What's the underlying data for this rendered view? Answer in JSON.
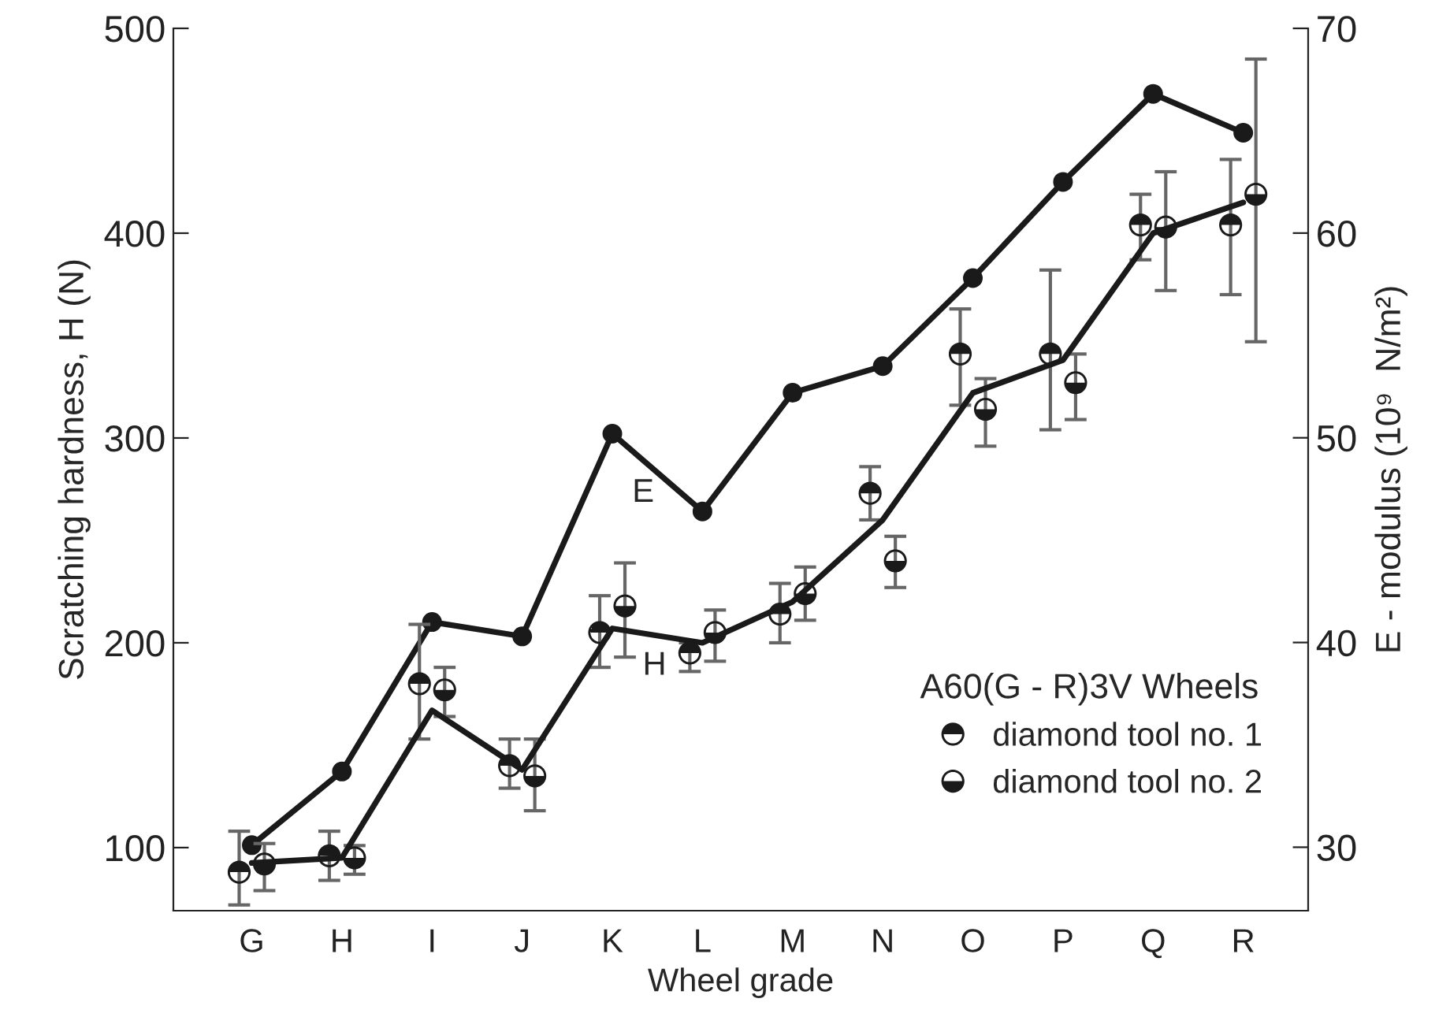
{
  "chart_data": {
    "type": "scatter",
    "xlabel": "Wheel grade",
    "ylabel": "Scratching hardness, H (N)",
    "y2label": "E - modulus (10⁹  N/m²)",
    "categories": [
      "G",
      "H",
      "I",
      "J",
      "K",
      "L",
      "M",
      "N",
      "O",
      "P",
      "Q",
      "R"
    ],
    "ylim": [
      69.2,
      500
    ],
    "yticks": [
      100,
      200,
      300,
      400,
      500
    ],
    "y2lim": [
      26.9,
      70
    ],
    "y2ticks": [
      30,
      40,
      50,
      60,
      70
    ],
    "grid": false,
    "legend": "bottom right",
    "legend_title": "A60(G - R)3V Wheels",
    "annotations": [
      "E",
      "H"
    ],
    "series": [
      {
        "type": "line",
        "axis": "y2",
        "color": "#1a1a1a",
        "marker": "circle",
        "values": [
          30.1,
          33.7,
          41.0,
          40.3,
          50.2,
          46.4,
          52.2,
          53.5,
          57.8,
          62.5,
          66.8,
          64.9
        ]
      },
      {
        "type": "line",
        "color": "#1a1a1a",
        "marker": "none",
        "values": [
          92.5,
          95,
          167,
          138,
          207,
          200,
          220,
          260,
          322,
          338,
          400,
          415
        ]
      },
      {
        "name": "diamond tool no. 1",
        "color": "#1a1a1a",
        "marker": "circle",
        "values": [
          88,
          96,
          180,
          140,
          205,
          195,
          214,
          273,
          341,
          341,
          404,
          404
        ],
        "errors": [
          [
            72,
            108
          ],
          [
            84,
            108
          ],
          [
            153,
            209
          ],
          [
            129,
            153
          ],
          [
            188,
            223
          ],
          [
            186,
            200
          ],
          [
            200,
            229
          ],
          [
            260,
            286
          ],
          [
            316,
            363
          ],
          [
            304,
            382
          ],
          [
            387,
            419
          ],
          [
            370,
            436
          ]
        ]
      },
      {
        "name": "diamond tool no. 2",
        "color": "#1a1a1a",
        "marker": "circle",
        "values": [
          92,
          95,
          177,
          135,
          218,
          205,
          224,
          240,
          314,
          327,
          403,
          419
        ],
        "errors": [
          [
            79,
            102
          ],
          [
            87,
            101
          ],
          [
            164,
            188
          ],
          [
            118,
            153
          ],
          [
            193,
            239
          ],
          [
            191,
            216
          ],
          [
            211,
            237
          ],
          [
            227,
            252
          ],
          [
            296,
            329
          ],
          [
            309,
            341
          ],
          [
            372,
            430
          ],
          [
            347,
            485
          ]
        ]
      }
    ]
  }
}
